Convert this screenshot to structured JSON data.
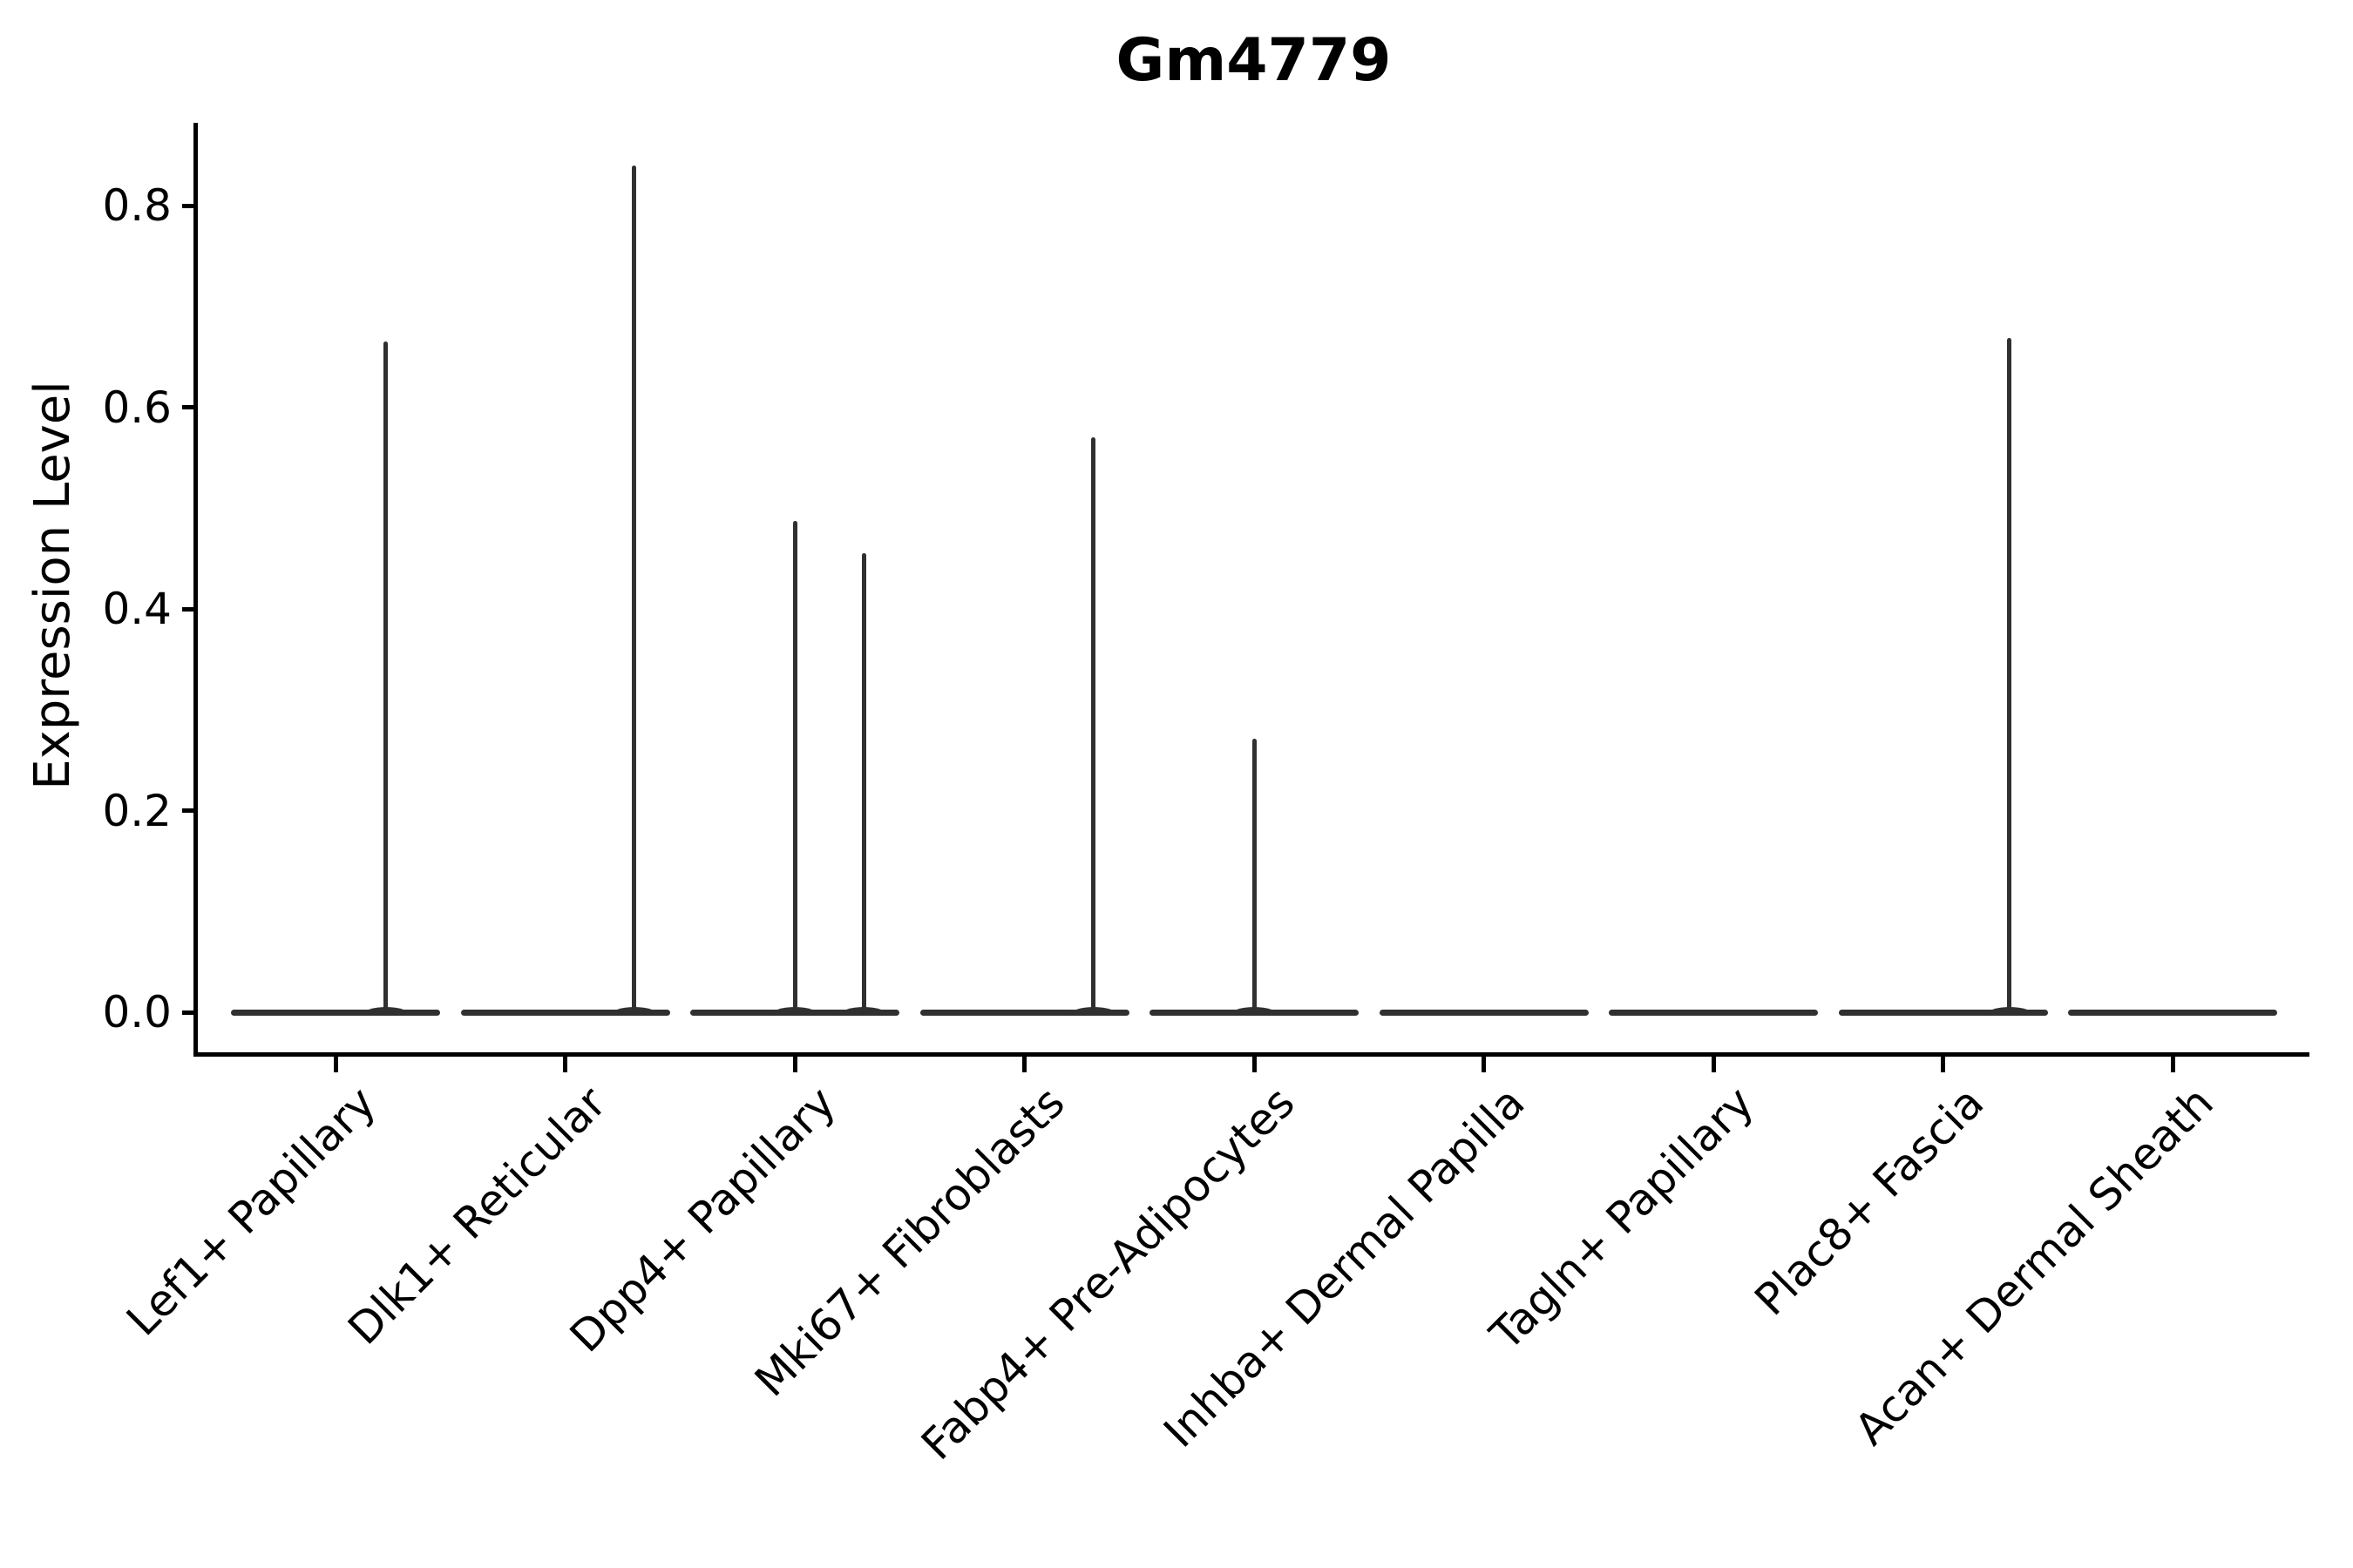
{
  "figure": {
    "title": "Gm4779",
    "ylabel": "Expression Level"
  },
  "chart_data": {
    "type": "violin",
    "title": "Gm4779",
    "xlabel": "",
    "ylabel": "Expression Level",
    "categories": [
      "Lef1+ Papillary",
      "Dlk1+ Reticular",
      "Dpp4+ Papillary",
      "Mki67+ Fibroblasts",
      "Fabp4+ Pre-Adipocytes",
      "Inhba+ Dermal Papilla",
      "Tagln+ Papillary",
      "Plac8+ Fascia",
      "Acan+ Dermal Sheath"
    ],
    "yticks": [
      0.0,
      0.2,
      0.4,
      0.6,
      0.8
    ],
    "ylim": [
      -0.04,
      0.882
    ],
    "grid": false,
    "legend": "none",
    "axis_color": "#000000",
    "violin_color": "#303030",
    "violins": [
      {
        "category": "Lef1+ Papillary",
        "baseline_value": 0.0,
        "spikes": [
          {
            "offset_frac": 0.22,
            "max_value": 0.665
          }
        ]
      },
      {
        "category": "Dlk1+ Reticular",
        "baseline_value": 0.0,
        "spikes": [
          {
            "offset_frac": 0.3,
            "max_value": 0.84
          }
        ]
      },
      {
        "category": "Dpp4+ Papillary",
        "baseline_value": 0.0,
        "spikes": [
          {
            "offset_frac": 0.0,
            "max_value": 0.487
          },
          {
            "offset_frac": 0.3,
            "max_value": 0.455
          }
        ]
      },
      {
        "category": "Mki67+ Fibroblasts",
        "baseline_value": 0.0,
        "spikes": [
          {
            "offset_frac": 0.3,
            "max_value": 0.57
          }
        ]
      },
      {
        "category": "Fabp4+ Pre-Adipocytes",
        "baseline_value": 0.0,
        "spikes": [
          {
            "offset_frac": 0.0,
            "max_value": 0.271
          }
        ]
      },
      {
        "category": "Inhba+ Dermal Papilla",
        "baseline_value": 0.0,
        "spikes": []
      },
      {
        "category": "Tagln+ Papillary",
        "baseline_value": 0.0,
        "spikes": []
      },
      {
        "category": "Plac8+ Fascia",
        "baseline_value": 0.0,
        "spikes": [
          {
            "offset_frac": 0.29,
            "max_value": 0.669
          }
        ]
      },
      {
        "category": "Acan+ Dermal Sheath",
        "baseline_value": 0.0,
        "spikes": []
      }
    ]
  }
}
